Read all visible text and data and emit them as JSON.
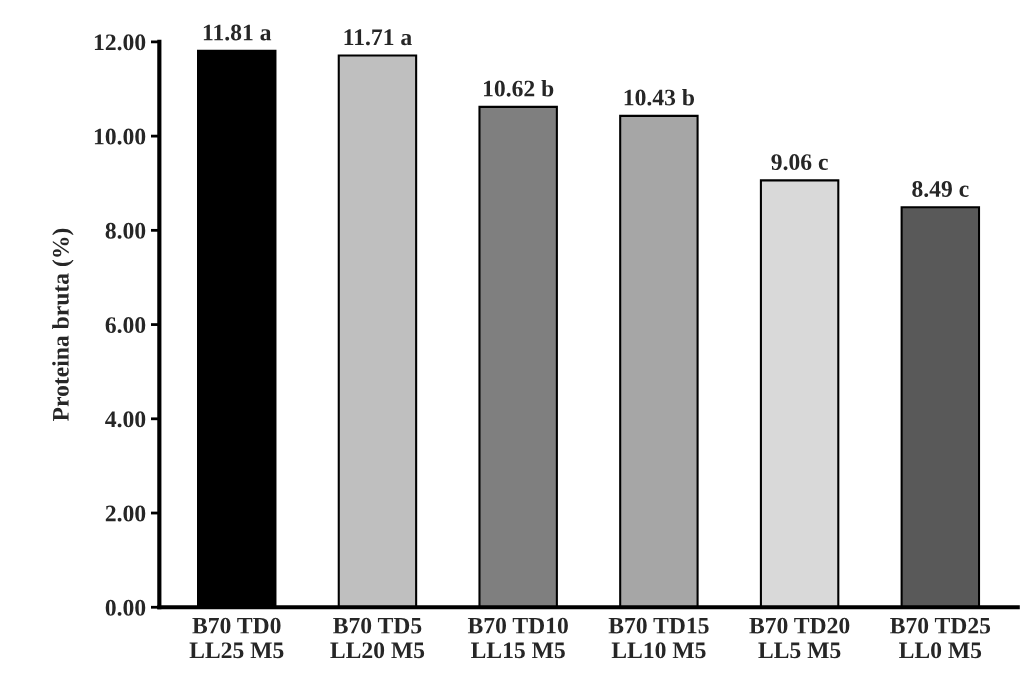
{
  "chart_data": {
    "type": "bar",
    "ylabel": "Proteina bruta (%)",
    "categories": [
      "B70 TD0\nLL25 M5",
      "B70 TD5\nLL20 M5",
      "B70 TD10\nLL15 M5",
      "B70 TD15\nLL10 M5",
      "B70 TD20\nLL5 M5",
      "B70 TD25\nLL0 M5"
    ],
    "values": [
      11.81,
      11.71,
      10.62,
      10.43,
      9.06,
      8.49
    ],
    "colors": [
      "#000000",
      "#bfbfbf",
      "#7f7f7f",
      "#a6a6a6",
      "#d9d9d9",
      "#595959"
    ],
    "value_labels": [
      "11.81 a",
      "11.71 a",
      "10.62 b",
      "10.43 b",
      "9.06 c",
      "8.49 c"
    ],
    "ylim": [
      0,
      12
    ],
    "yticks": [
      {
        "value": 0,
        "label": "0.00"
      },
      {
        "value": 2,
        "label": "2.00"
      },
      {
        "value": 4,
        "label": "4.00"
      },
      {
        "value": 6,
        "label": "6.00"
      },
      {
        "value": 8,
        "label": "8.00"
      },
      {
        "value": 10,
        "label": "10.00"
      },
      {
        "value": 12,
        "label": "12.00"
      }
    ],
    "grid": false,
    "legend": false
  }
}
